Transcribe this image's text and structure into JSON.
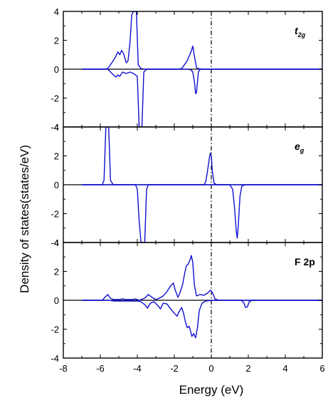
{
  "chart_data": {
    "type": "line",
    "xlabel": "Energy (eV)",
    "ylabel": "Density of states(states/eV)",
    "xlim": [
      -8,
      6
    ],
    "x_ticks": [
      -8,
      -6,
      -4,
      -2,
      0,
      2,
      4,
      6
    ],
    "ylim": [
      -4,
      4
    ],
    "y_ticks": [
      -4,
      -2,
      0,
      2,
      4
    ],
    "y_tick_labels": [
      "-4",
      "-2",
      "0",
      "2",
      "4"
    ],
    "grid": false,
    "fermi_level": 0,
    "line_color": "#1010d0",
    "panels": [
      {
        "label_main": "t",
        "label_sub": "2g",
        "italic": true,
        "spin_up": [
          [
            -7.0,
            0
          ],
          [
            -5.8,
            0
          ],
          [
            -5.6,
            0.05
          ],
          [
            -5.4,
            0.4
          ],
          [
            -5.2,
            0.8
          ],
          [
            -5.05,
            1.2
          ],
          [
            -4.95,
            1.0
          ],
          [
            -4.85,
            1.3
          ],
          [
            -4.75,
            1.1
          ],
          [
            -4.6,
            0.45
          ],
          [
            -4.5,
            0.6
          ],
          [
            -4.4,
            1.8
          ],
          [
            -4.3,
            3.8
          ],
          [
            -4.2,
            4.0
          ],
          [
            -4.05,
            4.0
          ],
          [
            -3.95,
            0.3
          ],
          [
            -3.8,
            0.05
          ],
          [
            -3.6,
            0
          ],
          [
            -1.8,
            0
          ],
          [
            -1.6,
            0.05
          ],
          [
            -1.4,
            0.4
          ],
          [
            -1.3,
            0.6
          ],
          [
            -1.2,
            0.9
          ],
          [
            -1.1,
            1.2
          ],
          [
            -1.0,
            1.6
          ],
          [
            -0.9,
            0.8
          ],
          [
            -0.8,
            0.1
          ],
          [
            -0.6,
            0
          ],
          [
            6.0,
            0
          ]
        ],
        "spin_down": [
          [
            -7.0,
            0
          ],
          [
            -5.6,
            0
          ],
          [
            -5.4,
            -0.25
          ],
          [
            -5.25,
            -0.45
          ],
          [
            -5.15,
            -0.55
          ],
          [
            -5.05,
            -0.4
          ],
          [
            -4.95,
            -0.5
          ],
          [
            -4.8,
            -0.2
          ],
          [
            -4.6,
            -0.3
          ],
          [
            -4.4,
            -0.2
          ],
          [
            -4.2,
            -0.3
          ],
          [
            -4.0,
            -0.5
          ],
          [
            -3.9,
            -4.0
          ],
          [
            -3.75,
            -4.0
          ],
          [
            -3.65,
            -0.2
          ],
          [
            -3.5,
            0
          ],
          [
            -1.3,
            0
          ],
          [
            -1.1,
            -0.05
          ],
          [
            -1.0,
            -0.2
          ],
          [
            -0.9,
            -1.0
          ],
          [
            -0.85,
            -1.7
          ],
          [
            -0.8,
            -1.6
          ],
          [
            -0.7,
            -0.2
          ],
          [
            -0.6,
            0
          ],
          [
            6.0,
            0
          ]
        ]
      },
      {
        "label_main": "e",
        "label_sub": "g",
        "italic": true,
        "spin_up": [
          [
            -7.0,
            0
          ],
          [
            -5.9,
            0
          ],
          [
            -5.8,
            0.3
          ],
          [
            -5.7,
            4.0
          ],
          [
            -5.55,
            4.0
          ],
          [
            -5.45,
            0.3
          ],
          [
            -5.3,
            0
          ],
          [
            -0.4,
            0
          ],
          [
            -0.3,
            0.2
          ],
          [
            -0.2,
            1.0
          ],
          [
            -0.1,
            1.9
          ],
          [
            -0.05,
            2.2
          ],
          [
            0.0,
            2.0
          ],
          [
            0.05,
            1.0
          ],
          [
            0.15,
            0.1
          ],
          [
            0.3,
            0
          ],
          [
            6.0,
            0
          ]
        ],
        "spin_down": [
          [
            -7.0,
            0
          ],
          [
            -4.1,
            0
          ],
          [
            -4.0,
            -0.3
          ],
          [
            -3.9,
            -2.5
          ],
          [
            -3.8,
            -4.0
          ],
          [
            -3.6,
            -4.0
          ],
          [
            -3.5,
            -0.3
          ],
          [
            -3.4,
            0
          ],
          [
            1.0,
            0
          ],
          [
            1.15,
            -0.3
          ],
          [
            1.25,
            -1.5
          ],
          [
            1.35,
            -3.2
          ],
          [
            1.4,
            -3.7
          ],
          [
            1.45,
            -3.0
          ],
          [
            1.55,
            -0.8
          ],
          [
            1.65,
            -0.1
          ],
          [
            1.8,
            0
          ],
          [
            6.0,
            0
          ]
        ]
      },
      {
        "label_main": "F 2p",
        "label_sub": "",
        "italic": false,
        "spin_up": [
          [
            -7.0,
            0
          ],
          [
            -5.9,
            0
          ],
          [
            -5.75,
            0.2
          ],
          [
            -5.6,
            0.4
          ],
          [
            -5.45,
            0.15
          ],
          [
            -5.3,
            0.05
          ],
          [
            -5.0,
            0.05
          ],
          [
            -4.8,
            0.1
          ],
          [
            -4.6,
            0.05
          ],
          [
            -4.3,
            0.05
          ],
          [
            -4.1,
            0.1
          ],
          [
            -3.9,
            0
          ],
          [
            -3.6,
            0.15
          ],
          [
            -3.4,
            0.4
          ],
          [
            -3.2,
            0.2
          ],
          [
            -3.0,
            0.05
          ],
          [
            -2.8,
            0.15
          ],
          [
            -2.6,
            0.3
          ],
          [
            -2.4,
            0.6
          ],
          [
            -2.2,
            1.0
          ],
          [
            -2.05,
            1.2
          ],
          [
            -1.95,
            0.7
          ],
          [
            -1.8,
            0.2
          ],
          [
            -1.7,
            0.5
          ],
          [
            -1.55,
            1.1
          ],
          [
            -1.45,
            1.8
          ],
          [
            -1.35,
            2.4
          ],
          [
            -1.25,
            2.5
          ],
          [
            -1.15,
            2.8
          ],
          [
            -1.08,
            3.1
          ],
          [
            -1.0,
            2.6
          ],
          [
            -0.92,
            1.1
          ],
          [
            -0.8,
            0.3
          ],
          [
            -0.6,
            0.4
          ],
          [
            -0.4,
            0.35
          ],
          [
            -0.2,
            0.5
          ],
          [
            -0.05,
            0.7
          ],
          [
            0.05,
            0.55
          ],
          [
            0.2,
            0.1
          ],
          [
            0.4,
            0
          ],
          [
            6.0,
            0
          ]
        ],
        "spin_down": [
          [
            -7.0,
            0
          ],
          [
            -5.5,
            0
          ],
          [
            -5.3,
            -0.05
          ],
          [
            -5.0,
            -0.05
          ],
          [
            -4.5,
            -0.05
          ],
          [
            -4.0,
            -0.05
          ],
          [
            -3.8,
            -0.1
          ],
          [
            -3.6,
            -0.3
          ],
          [
            -3.45,
            -0.55
          ],
          [
            -3.3,
            -0.2
          ],
          [
            -3.1,
            -0.1
          ],
          [
            -2.9,
            -0.35
          ],
          [
            -2.75,
            -0.6
          ],
          [
            -2.6,
            -0.2
          ],
          [
            -2.4,
            -0.25
          ],
          [
            -2.2,
            -0.6
          ],
          [
            -2.0,
            -0.9
          ],
          [
            -1.85,
            -1.1
          ],
          [
            -1.75,
            -0.8
          ],
          [
            -1.6,
            -0.5
          ],
          [
            -1.5,
            -0.9
          ],
          [
            -1.4,
            -1.5
          ],
          [
            -1.3,
            -1.9
          ],
          [
            -1.2,
            -1.8
          ],
          [
            -1.15,
            -2.0
          ],
          [
            -1.05,
            -2.5
          ],
          [
            -0.95,
            -2.3
          ],
          [
            -0.85,
            -2.6
          ],
          [
            -0.75,
            -1.9
          ],
          [
            -0.65,
            -0.7
          ],
          [
            -0.5,
            -0.2
          ],
          [
            -0.3,
            -0.05
          ],
          [
            0.0,
            0
          ],
          [
            1.6,
            0
          ],
          [
            1.75,
            -0.15
          ],
          [
            1.85,
            -0.5
          ],
          [
            1.95,
            -0.45
          ],
          [
            2.05,
            -0.1
          ],
          [
            2.2,
            0
          ],
          [
            6.0,
            0
          ]
        ]
      }
    ]
  }
}
